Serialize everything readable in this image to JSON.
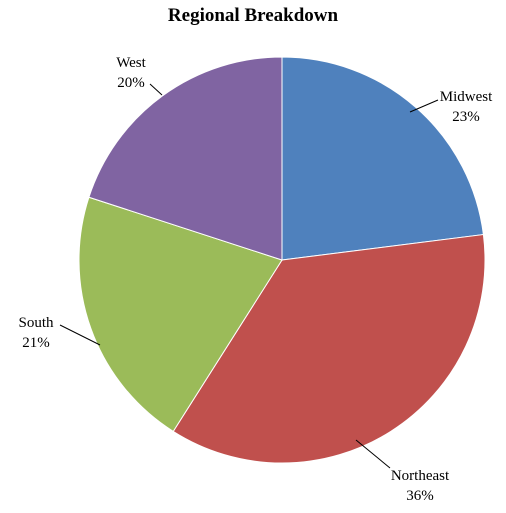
{
  "chart_data": {
    "type": "pie",
    "title": "Regional Breakdown",
    "start_angle_deg": 0,
    "direction": "clockwise",
    "slices": [
      {
        "label": "Midwest",
        "value": 23,
        "value_label": "23%",
        "color": "#4F81BD"
      },
      {
        "label": "Northeast",
        "value": 36,
        "value_label": "36%",
        "color": "#C0504D"
      },
      {
        "label": "South",
        "value": 21,
        "value_label": "21%",
        "color": "#9BBB59"
      },
      {
        "label": "West",
        "value": 20,
        "value_label": "20%",
        "color": "#8064A2"
      }
    ],
    "legend": "none",
    "data_labels": "outside-with-leader-lines"
  }
}
